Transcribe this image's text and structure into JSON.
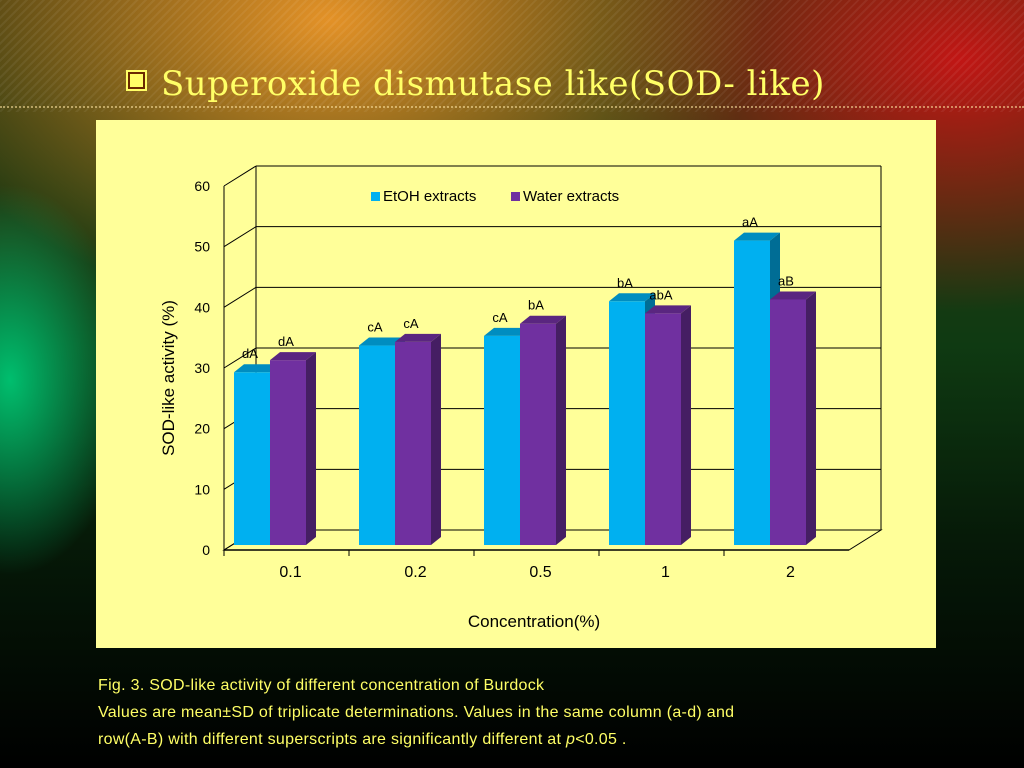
{
  "slide": {
    "title": "Superoxide dismutase  like(SOD- like)"
  },
  "chart_data": {
    "type": "bar",
    "categories": [
      "0.1",
      "0.2",
      "0.5",
      "1",
      "2"
    ],
    "series": [
      {
        "name": "EtOH extracts",
        "color": "#00b0f0",
        "values": [
          29.3,
          33.7,
          35.3,
          41.0,
          51.0
        ],
        "labels": [
          "dA",
          "cA",
          "cA",
          "bA",
          "aA"
        ]
      },
      {
        "name": "Water extracts",
        "color": "#7030a0",
        "values": [
          31.3,
          34.3,
          37.3,
          39.0,
          41.3
        ],
        "labels": [
          "dA",
          "cA",
          "bA",
          "abA",
          "aB"
        ]
      }
    ],
    "xlabel": "Concentration(%)",
    "ylabel": "SOD-like activity (%)",
    "ylim": [
      0,
      60
    ],
    "yticks": [
      "0",
      "10",
      "20",
      "30",
      "40",
      "50",
      "60"
    ],
    "grid": true,
    "legend": "top-center",
    "style": "3d-columns"
  },
  "caption": {
    "line1": "Fig. 3. SOD-like activity  of different concentration  of  Burdock",
    "line2": "Values are mean±SD of triplicate determinations. Values in the same column (a-d) and",
    "line3_pre": "row(A-B) with different superscripts are significantly different at ",
    "line3_p": "p",
    "line3_post": "<0.05 ."
  }
}
